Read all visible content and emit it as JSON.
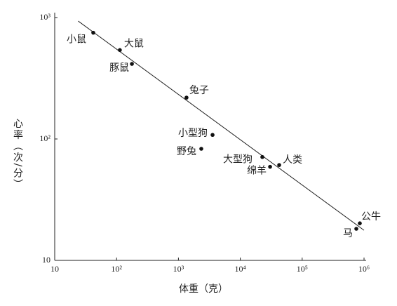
{
  "chart_data": {
    "type": "scatter",
    "xlabel": "体重（克）",
    "ylabel": "心率（次/分）",
    "labels": [
      "小鼠",
      "大鼠",
      "豚鼠",
      "兔子",
      "小型狗",
      "野兔",
      "大型狗",
      "绵羊",
      "人类",
      "公牛",
      "马"
    ],
    "x": [
      42,
      113,
      177,
      1350,
      3560,
      2340,
      22700,
      30300,
      42500,
      855000,
      750000
    ],
    "y": [
      750,
      540,
      415,
      219,
      108,
      83,
      71,
      59,
      61,
      20.2,
      18.2
    ],
    "color": "#111111",
    "fit_line": {
      "x": [
        24,
        1000000
      ],
      "y": [
        935,
        17.7
      ]
    },
    "xscale": "log",
    "yscale": "log",
    "xlim": [
      10,
      1000000
    ],
    "ylim": [
      10,
      1000
    ],
    "xticks": [
      10,
      {
        "value": 100,
        "label": "10²"
      },
      {
        "value": 1000,
        "label": "10³"
      },
      {
        "value": 10000,
        "label": "10⁴"
      },
      {
        "value": 100000,
        "label": "10⁵"
      },
      {
        "value": 1000000,
        "label": "10⁶"
      }
    ],
    "yticks": [
      10,
      {
        "value": 100,
        "label": "10²"
      },
      {
        "value": 1000,
        "label": "10³"
      }
    ]
  }
}
